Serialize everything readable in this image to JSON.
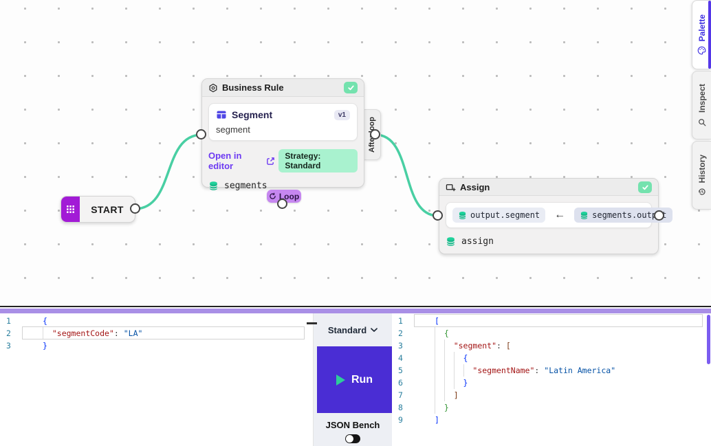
{
  "canvas": {
    "nodes": {
      "start": {
        "label": "START"
      },
      "business_rule": {
        "title": "Business Rule",
        "card": {
          "title": "Segment",
          "version": "v1",
          "subtitle": "segment"
        },
        "open_link": "Open in editor",
        "strategy_badge": "Strategy: Standard",
        "output_var": "segments",
        "loop_badge": "Loop",
        "after_loop_label": "After loop"
      },
      "assign": {
        "title": "Assign",
        "target_chip": "output.segment",
        "arrow": "←",
        "source_chip": "segments.output",
        "output_var": "assign"
      }
    },
    "icons": [
      "grid-icon",
      "hexagon-gear-icon",
      "table-icon",
      "external-link-icon",
      "database-icon",
      "check-icon",
      "loop-icon",
      "insert-rect-icon"
    ],
    "colors": {
      "edge": "#49cfa3",
      "start_block": "#a21bd6",
      "check_badge": "#74e2ae",
      "loop_badge": "#c687f0",
      "strategy_chip": "#a9f2cf",
      "link": "#6d3af2"
    }
  },
  "sidebar": {
    "tabs": [
      {
        "label": "Palette",
        "icon": "palette-icon",
        "active": true
      },
      {
        "label": "Inspect",
        "icon": "magnifier-icon",
        "active": false
      },
      {
        "label": "History",
        "icon": "history-icon",
        "active": false
      }
    ],
    "active_color": "#3d2ee0"
  },
  "bench": {
    "mode_select": "Standard",
    "run_label": "Run",
    "bench_label": "JSON Bench",
    "run_color": "#4a2dd4",
    "input_editor": {
      "lines": [
        {
          "n": 1,
          "tokens": [
            {
              "t": "{",
              "c": "b1"
            }
          ]
        },
        {
          "n": 2,
          "active": true,
          "tokens": [
            {
              "t": "  ",
              "c": "pun"
            },
            {
              "t": "\"segmentCode\"",
              "c": "key"
            },
            {
              "t": ": ",
              "c": "pun"
            },
            {
              "t": "\"LA\"",
              "c": "str"
            }
          ]
        },
        {
          "n": 3,
          "tokens": [
            {
              "t": "}",
              "c": "b1"
            }
          ]
        }
      ]
    },
    "output_editor": {
      "lines": [
        {
          "n": 1,
          "active": true,
          "tokens": [
            {
              "t": "[",
              "c": "b1"
            }
          ]
        },
        {
          "n": 2,
          "tokens": [
            {
              "t": "  ",
              "c": "pun"
            },
            {
              "t": "{",
              "c": "b2"
            }
          ]
        },
        {
          "n": 3,
          "tokens": [
            {
              "t": "    ",
              "c": "pun"
            },
            {
              "t": "\"segment\"",
              "c": "key"
            },
            {
              "t": ": ",
              "c": "pun"
            },
            {
              "t": "[",
              "c": "b3"
            }
          ]
        },
        {
          "n": 4,
          "tokens": [
            {
              "t": "      ",
              "c": "pun"
            },
            {
              "t": "{",
              "c": "b1"
            }
          ]
        },
        {
          "n": 5,
          "tokens": [
            {
              "t": "        ",
              "c": "pun"
            },
            {
              "t": "\"segmentName\"",
              "c": "key"
            },
            {
              "t": ": ",
              "c": "pun"
            },
            {
              "t": "\"Latin America\"",
              "c": "str"
            }
          ]
        },
        {
          "n": 6,
          "tokens": [
            {
              "t": "      ",
              "c": "pun"
            },
            {
              "t": "}",
              "c": "b1"
            }
          ]
        },
        {
          "n": 7,
          "tokens": [
            {
              "t": "    ",
              "c": "pun"
            },
            {
              "t": "]",
              "c": "b3"
            }
          ]
        },
        {
          "n": 8,
          "tokens": [
            {
              "t": "  ",
              "c": "pun"
            },
            {
              "t": "}",
              "c": "b2"
            }
          ]
        },
        {
          "n": 9,
          "tokens": [
            {
              "t": "]",
              "c": "b1"
            }
          ]
        }
      ]
    }
  }
}
